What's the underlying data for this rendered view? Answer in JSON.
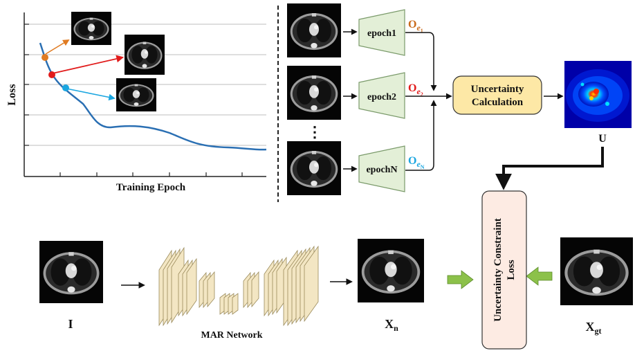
{
  "loss_plot": {
    "ylabel": "Loss",
    "xlabel": "Training Epoch",
    "marker_colors": [
      "#e07b22",
      "#e11b1b",
      "#1ba6e0"
    ],
    "curve_color": "#2a6fb3"
  },
  "epochs": [
    {
      "label": "epoch1",
      "output_main": "O",
      "output_sub": "e",
      "output_subsub": "1",
      "color": "#c96a1a"
    },
    {
      "label": "epoch2",
      "output_main": "O",
      "output_sub": "e",
      "output_subsub": "2",
      "color": "#e11b1b"
    },
    {
      "label": "epochN",
      "output_main": "O",
      "output_sub": "e",
      "output_subsub": "N",
      "color": "#1ba6e0"
    }
  ],
  "ellipsis": "⋮",
  "uncertainty_box": {
    "line1": "Uncertainty",
    "line2": "Calculation",
    "fill": "#fde8a6"
  },
  "uncertainty_map_label": "U",
  "constraint_box": {
    "line1": "Uncertainty Constraint",
    "line2": "Loss",
    "fill": "#fdebe3"
  },
  "bottom": {
    "input_label": "I",
    "network_label": "MAR Network",
    "output_label_main": "X",
    "output_label_sub": "n",
    "gt_label_main": "X",
    "gt_label_sub": "gt"
  },
  "colors": {
    "epoch_fill": "#e3efd7",
    "epoch_stroke": "#7a9a6a",
    "block_fill": "#f3e6c3",
    "green_arrow": "#8cc14a"
  }
}
